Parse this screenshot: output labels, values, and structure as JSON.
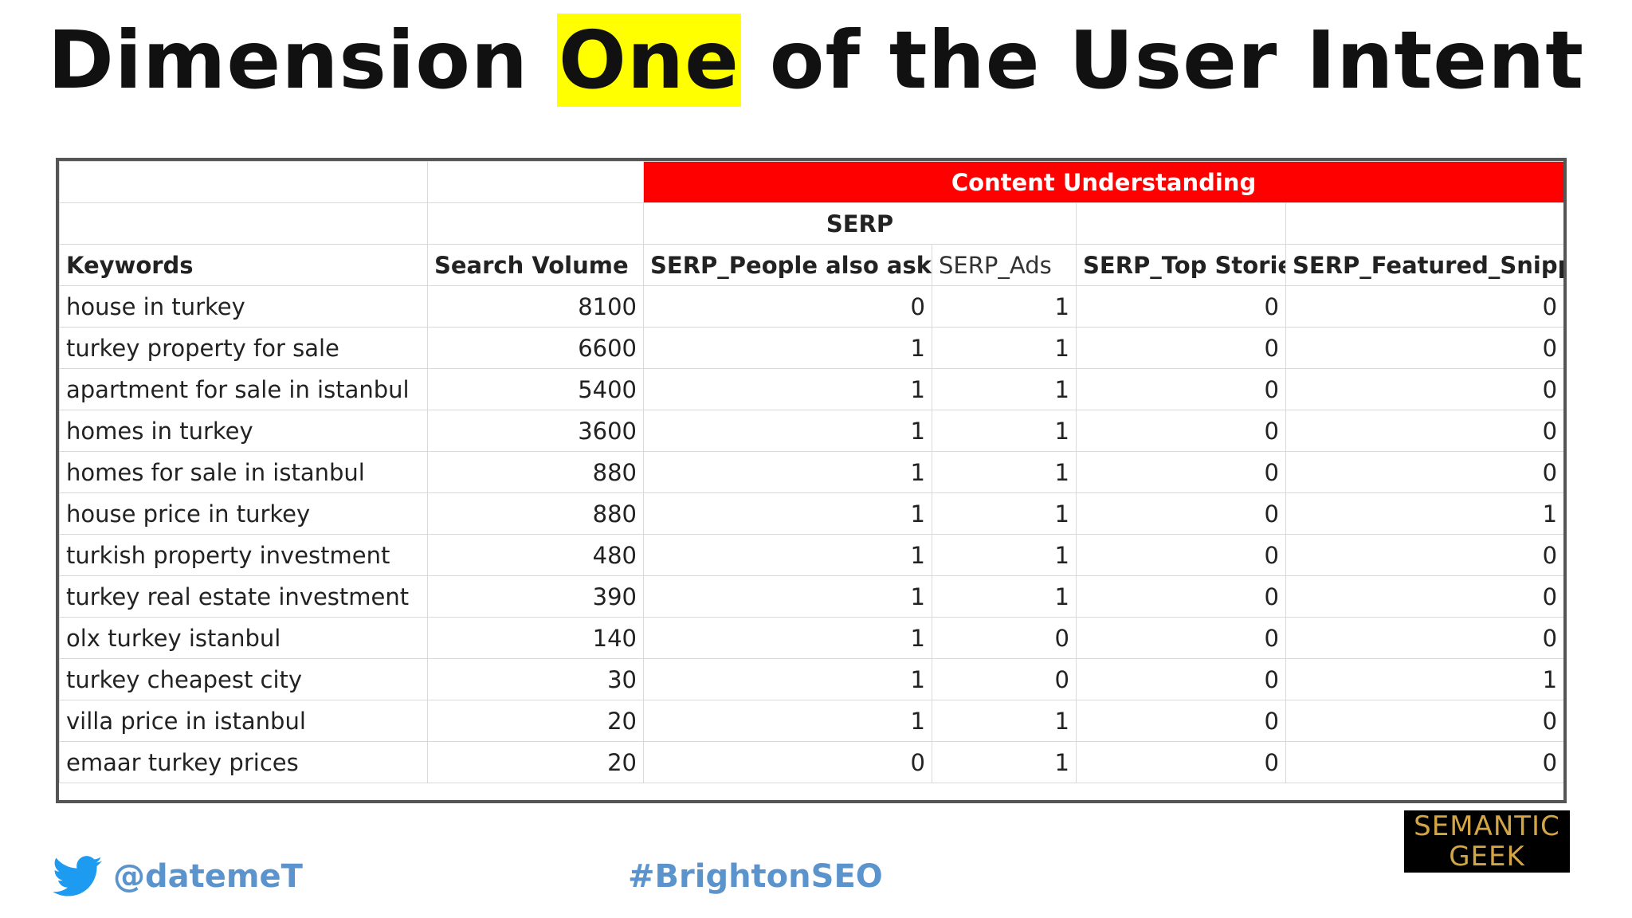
{
  "title": {
    "before": "Dimension ",
    "highlight": "One",
    "after": " of the User Intent"
  },
  "table": {
    "group_header": "Content Understanding",
    "sub_header": "SERP",
    "columns": [
      "Keywords",
      "Search Volume",
      "SERP_People also ask",
      "SERP_Ads",
      "SERP_Top Stories",
      "SERP_Featured_Snippet"
    ],
    "rows": [
      [
        "house in turkey",
        "8100",
        "0",
        "1",
        "0",
        "0"
      ],
      [
        "turkey property for sale",
        "6600",
        "1",
        "1",
        "0",
        "0"
      ],
      [
        "apartment for sale in istanbul",
        "5400",
        "1",
        "1",
        "0",
        "0"
      ],
      [
        "homes in turkey",
        "3600",
        "1",
        "1",
        "0",
        "0"
      ],
      [
        "homes for sale in istanbul",
        "880",
        "1",
        "1",
        "0",
        "0"
      ],
      [
        "house price in turkey",
        "880",
        "1",
        "1",
        "0",
        "1"
      ],
      [
        "turkish property investment",
        "480",
        "1",
        "1",
        "0",
        "0"
      ],
      [
        "turkey real estate investment",
        "390",
        "1",
        "1",
        "0",
        "0"
      ],
      [
        "olx turkey istanbul",
        "140",
        "1",
        "0",
        "0",
        "0"
      ],
      [
        "turkey cheapest city",
        "30",
        "1",
        "0",
        "0",
        "1"
      ],
      [
        "villa price in istanbul",
        "20",
        "1",
        "1",
        "0",
        "0"
      ],
      [
        "emaar turkey prices",
        "20",
        "0",
        "1",
        "0",
        "0"
      ]
    ]
  },
  "footer": {
    "icon": "twitter-bird-icon",
    "handle": "@datemeT",
    "hashtag": "#BrightonSEO",
    "logo_line1": "SEMANTIC",
    "logo_line2": "GEEK"
  },
  "colors": {
    "highlight": "#ffff00",
    "group_header_bg": "#ff0000",
    "footer_text": "#5b93cc",
    "logo_bg": "#000000",
    "logo_text": "#d4a544"
  }
}
